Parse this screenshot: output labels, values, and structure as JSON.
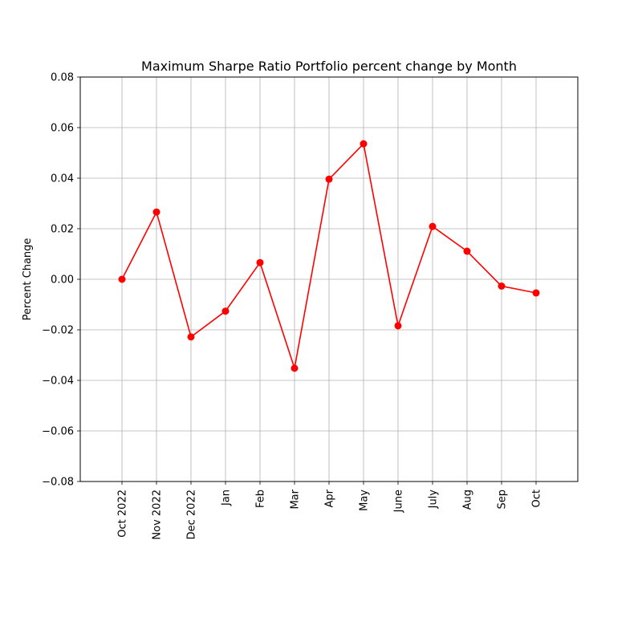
{
  "chart_data": {
    "type": "line",
    "title": "Maximum Sharpe Ratio Portfolio percent change by Month",
    "xlabel": "",
    "ylabel": "Percent Change",
    "categories": [
      "Oct 2022",
      "Nov 2022",
      "Dec 2022",
      "Jan",
      "Feb",
      "Mar",
      "Apr",
      "May",
      "June",
      "July",
      "Aug",
      "Sep",
      "Oct"
    ],
    "series": [
      {
        "values": [
          0.0,
          0.0266,
          -0.0228,
          -0.0126,
          0.0066,
          -0.0352,
          0.0396,
          0.0536,
          -0.0184,
          0.0209,
          0.0111,
          -0.0027,
          -0.0054
        ],
        "color": "#ff0000",
        "marker": "circle"
      }
    ],
    "ylim": [
      -0.08,
      0.08
    ],
    "yticks": [
      "0.08",
      "0.06",
      "0.04",
      "0.02",
      "0.00",
      "−0.02",
      "−0.04",
      "−0.06",
      "−0.08"
    ],
    "ytick_values": [
      0.08,
      0.06,
      0.04,
      0.02,
      0.0,
      -0.02,
      -0.04,
      -0.06,
      -0.08
    ],
    "grid": true,
    "grid_color": "#b0b0b0",
    "xtick_rotation": "vertical"
  }
}
